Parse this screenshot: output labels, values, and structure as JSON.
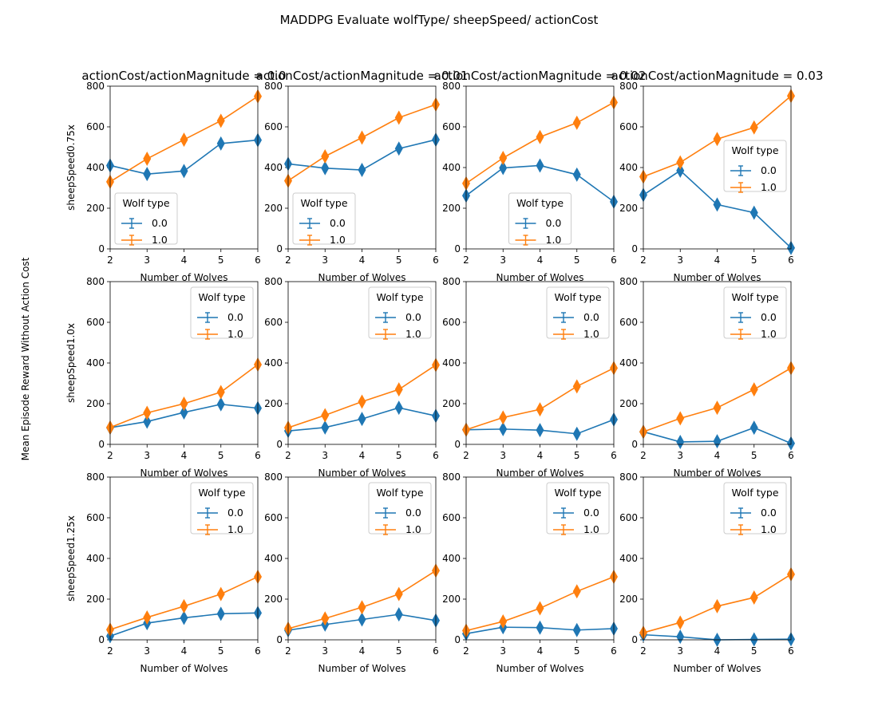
{
  "figure": {
    "title": "MADDPG Evaluate wolfType/ sheepSpeed/ actionCost",
    "ylabel": "Mean Episode Reward Without Action Cost"
  },
  "colors": {
    "series_0": "#1f77b4",
    "series_1": "#ff7f0e"
  },
  "legend_title": "Wolf type",
  "chart_data": [
    {
      "type": "line",
      "title": "actionCost/actionMagnitude = 0.0",
      "xlabel": "Number of Wolves",
      "ylabel": "sheepSpeed0.75x",
      "xlim": [
        2,
        6
      ],
      "ylim": [
        0,
        800
      ],
      "xticks": [
        2,
        3,
        4,
        5,
        6
      ],
      "yticks": [
        0,
        200,
        400,
        600,
        800
      ],
      "legend": "lower-left",
      "x": [
        2,
        3,
        4,
        5,
        6
      ],
      "series": [
        {
          "name": "0.0",
          "values": [
            410,
            368,
            383,
            518,
            535
          ]
        },
        {
          "name": "1.0",
          "values": [
            330,
            443,
            537,
            630,
            750
          ]
        }
      ]
    },
    {
      "type": "line",
      "title": "actionCost/actionMagnitude = 0.01",
      "xlabel": "Number of Wolves",
      "ylabel": "",
      "xlim": [
        2,
        6
      ],
      "ylim": [
        0,
        800
      ],
      "xticks": [
        2,
        3,
        4,
        5,
        6
      ],
      "yticks": [
        0,
        200,
        400,
        600,
        800
      ],
      "legend": "lower-left",
      "x": [
        2,
        3,
        4,
        5,
        6
      ],
      "series": [
        {
          "name": "0.0",
          "values": [
            418,
            397,
            388,
            493,
            537
          ]
        },
        {
          "name": "1.0",
          "values": [
            335,
            455,
            547,
            645,
            710
          ]
        }
      ]
    },
    {
      "type": "line",
      "title": "actionCost/actionMagnitude = 0.02",
      "xlabel": "Number of Wolves",
      "ylabel": "",
      "xlim": [
        2,
        6
      ],
      "ylim": [
        0,
        800
      ],
      "xticks": [
        2,
        3,
        4,
        5,
        6
      ],
      "yticks": [
        0,
        200,
        400,
        600,
        800
      ],
      "legend": "lower-center",
      "x": [
        2,
        3,
        4,
        5,
        6
      ],
      "series": [
        {
          "name": "0.0",
          "values": [
            262,
            398,
            410,
            365,
            232
          ]
        },
        {
          "name": "1.0",
          "values": [
            322,
            447,
            550,
            620,
            720
          ]
        }
      ]
    },
    {
      "type": "line",
      "title": "actionCost/actionMagnitude = 0.03",
      "xlabel": "Number of Wolves",
      "ylabel": "",
      "xlim": [
        2,
        6
      ],
      "ylim": [
        0,
        800
      ],
      "xticks": [
        2,
        3,
        4,
        5,
        6
      ],
      "yticks": [
        0,
        200,
        400,
        600,
        800
      ],
      "legend": "center-right",
      "x": [
        2,
        3,
        4,
        5,
        6
      ],
      "series": [
        {
          "name": "0.0",
          "values": [
            265,
            385,
            218,
            178,
            5
          ]
        },
        {
          "name": "1.0",
          "values": [
            355,
            425,
            540,
            597,
            752
          ]
        }
      ]
    },
    {
      "type": "line",
      "title": "",
      "xlabel": "Number of Wolves",
      "ylabel": "sheepSpeed1.0x",
      "xlim": [
        2,
        6
      ],
      "ylim": [
        0,
        800
      ],
      "xticks": [
        2,
        3,
        4,
        5,
        6
      ],
      "yticks": [
        0,
        200,
        400,
        600,
        800
      ],
      "legend": "upper-right",
      "x": [
        2,
        3,
        4,
        5,
        6
      ],
      "series": [
        {
          "name": "0.0",
          "values": [
            82,
            112,
            157,
            197,
            178
          ]
        },
        {
          "name": "1.0",
          "values": [
            83,
            155,
            200,
            257,
            392
          ]
        }
      ]
    },
    {
      "type": "line",
      "title": "",
      "xlabel": "Number of Wolves",
      "ylabel": "",
      "xlim": [
        2,
        6
      ],
      "ylim": [
        0,
        800
      ],
      "xticks": [
        2,
        3,
        4,
        5,
        6
      ],
      "yticks": [
        0,
        200,
        400,
        600,
        800
      ],
      "legend": "upper-right",
      "x": [
        2,
        3,
        4,
        5,
        6
      ],
      "series": [
        {
          "name": "0.0",
          "values": [
            66,
            83,
            125,
            180,
            140
          ]
        },
        {
          "name": "1.0",
          "values": [
            82,
            143,
            210,
            270,
            390
          ]
        }
      ]
    },
    {
      "type": "line",
      "title": "",
      "xlabel": "Number of Wolves",
      "ylabel": "",
      "xlim": [
        2,
        6
      ],
      "ylim": [
        0,
        800
      ],
      "xticks": [
        2,
        3,
        4,
        5,
        6
      ],
      "yticks": [
        0,
        200,
        400,
        600,
        800
      ],
      "legend": "upper-right",
      "x": [
        2,
        3,
        4,
        5,
        6
      ],
      "series": [
        {
          "name": "0.0",
          "values": [
            72,
            75,
            70,
            52,
            122
          ]
        },
        {
          "name": "1.0",
          "values": [
            72,
            132,
            172,
            285,
            375
          ]
        }
      ]
    },
    {
      "type": "line",
      "title": "",
      "xlabel": "Number of Wolves",
      "ylabel": "",
      "xlim": [
        2,
        6
      ],
      "ylim": [
        0,
        800
      ],
      "xticks": [
        2,
        3,
        4,
        5,
        6
      ],
      "yticks": [
        0,
        200,
        400,
        600,
        800
      ],
      "legend": "upper-right",
      "x": [
        2,
        3,
        4,
        5,
        6
      ],
      "series": [
        {
          "name": "0.0",
          "values": [
            62,
            12,
            15,
            82,
            5
          ]
        },
        {
          "name": "1.0",
          "values": [
            62,
            128,
            180,
            270,
            375
          ]
        }
      ]
    },
    {
      "type": "line",
      "title": "",
      "xlabel": "Number of Wolves",
      "ylabel": "sheepSpeed1.25x",
      "xlim": [
        2,
        6
      ],
      "ylim": [
        0,
        800
      ],
      "xticks": [
        2,
        3,
        4,
        5,
        6
      ],
      "yticks": [
        0,
        200,
        400,
        600,
        800
      ],
      "legend": "upper-right",
      "x": [
        2,
        3,
        4,
        5,
        6
      ],
      "series": [
        {
          "name": "0.0",
          "values": [
            18,
            82,
            108,
            128,
            132
          ]
        },
        {
          "name": "1.0",
          "values": [
            50,
            110,
            165,
            225,
            310
          ]
        }
      ]
    },
    {
      "type": "line",
      "title": "",
      "xlabel": "Number of Wolves",
      "ylabel": "",
      "xlim": [
        2,
        6
      ],
      "ylim": [
        0,
        800
      ],
      "xticks": [
        2,
        3,
        4,
        5,
        6
      ],
      "yticks": [
        0,
        200,
        400,
        600,
        800
      ],
      "legend": "upper-right",
      "x": [
        2,
        3,
        4,
        5,
        6
      ],
      "series": [
        {
          "name": "0.0",
          "values": [
            47,
            75,
            100,
            125,
            95
          ]
        },
        {
          "name": "1.0",
          "values": [
            55,
            105,
            160,
            225,
            340
          ]
        }
      ]
    },
    {
      "type": "line",
      "title": "",
      "xlabel": "Number of Wolves",
      "ylabel": "",
      "xlim": [
        2,
        6
      ],
      "ylim": [
        0,
        800
      ],
      "xticks": [
        2,
        3,
        4,
        5,
        6
      ],
      "yticks": [
        0,
        200,
        400,
        600,
        800
      ],
      "legend": "upper-right",
      "x": [
        2,
        3,
        4,
        5,
        6
      ],
      "series": [
        {
          "name": "0.0",
          "values": [
            30,
            62,
            60,
            48,
            55
          ]
        },
        {
          "name": "1.0",
          "values": [
            45,
            90,
            155,
            238,
            310
          ]
        }
      ]
    },
    {
      "type": "line",
      "title": "",
      "xlabel": "Number of Wolves",
      "ylabel": "",
      "xlim": [
        2,
        6
      ],
      "ylim": [
        0,
        800
      ],
      "xticks": [
        2,
        3,
        4,
        5,
        6
      ],
      "yticks": [
        0,
        200,
        400,
        600,
        800
      ],
      "legend": "upper-right",
      "x": [
        2,
        3,
        4,
        5,
        6
      ],
      "series": [
        {
          "name": "0.0",
          "values": [
            25,
            15,
            0,
            2,
            3
          ]
        },
        {
          "name": "1.0",
          "values": [
            35,
            85,
            165,
            208,
            322
          ]
        }
      ]
    }
  ]
}
